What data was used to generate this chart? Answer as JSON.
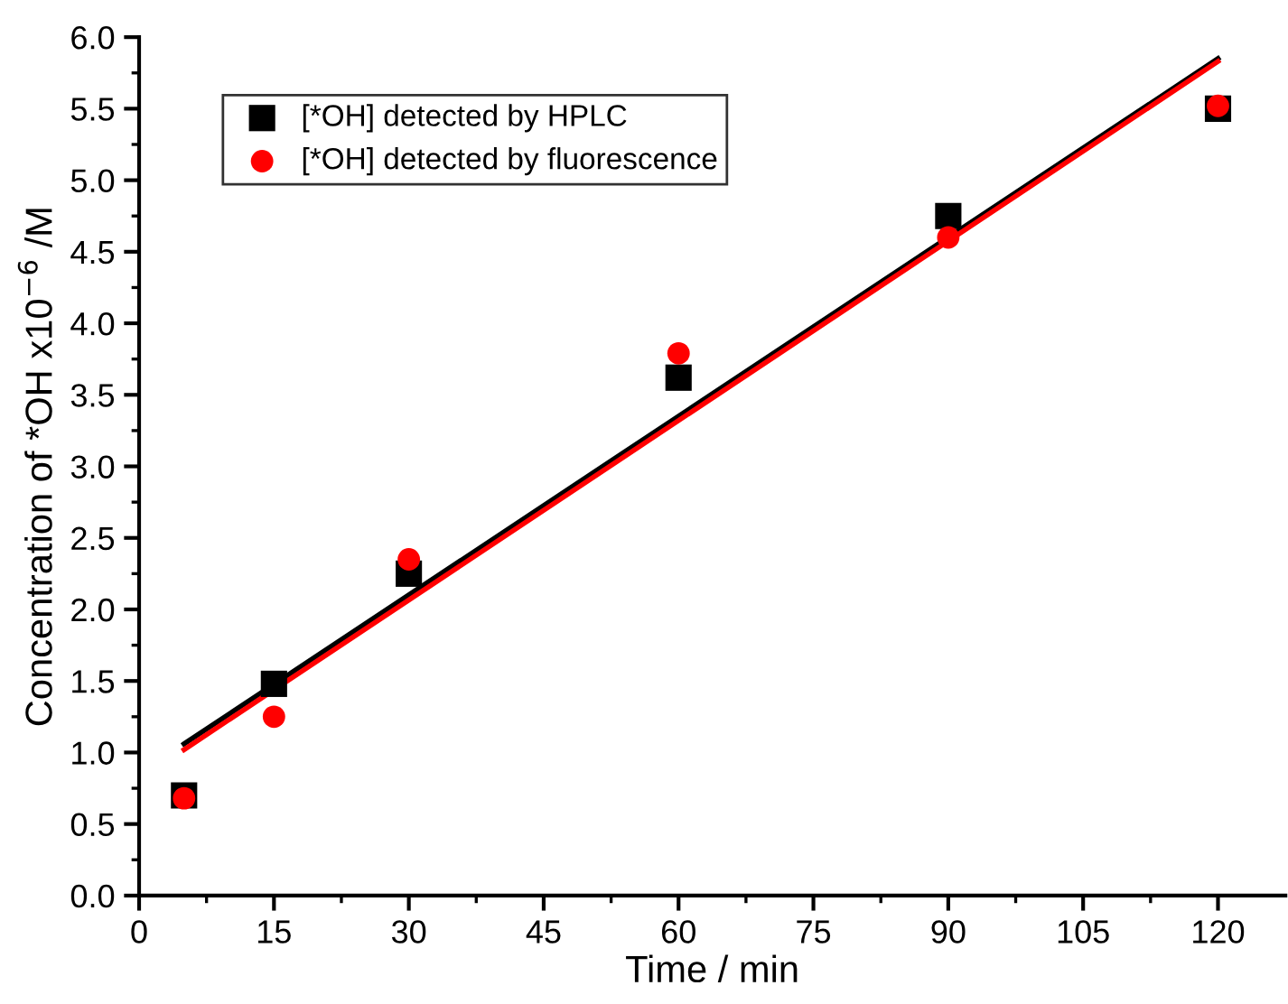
{
  "chart_data": {
    "type": "scatter",
    "xlabel": "Time / min",
    "ylabel": "Concentration of *OH x10$^{−6}$ /M",
    "xlim": [
      0,
      127.5
    ],
    "xticks": [
      0,
      15,
      30,
      45,
      60,
      75,
      90,
      105,
      120
    ],
    "ylim": [
      0,
      6.0
    ],
    "yticks": [
      {
        "value": 0,
        "label": "0.0"
      },
      0.5,
      {
        "value": 1,
        "label": "1.0"
      },
      1.5,
      {
        "value": 2,
        "label": "2.0"
      },
      2.5,
      {
        "value": 3,
        "label": "3.0"
      },
      3.5,
      {
        "value": 4,
        "label": "4.0"
      },
      4.5,
      {
        "value": 5,
        "label": "5.0"
      },
      5.5,
      {
        "value": 6,
        "label": "6.0"
      }
    ],
    "grid": false,
    "legend": "top left",
    "series": [
      {
        "name": "[*OH] detected by HPLC",
        "color": "#000000",
        "marker": "square",
        "x": [
          5,
          15,
          30,
          60,
          90,
          120
        ],
        "values": [
          0.7,
          1.48,
          2.25,
          3.62,
          4.75,
          5.5
        ]
      },
      {
        "name": "[*OH] detected by fluorescence",
        "color": "#ff0000",
        "marker": "circle",
        "x": [
          5,
          15,
          30,
          60,
          90,
          120
        ],
        "values": [
          0.68,
          1.25,
          2.35,
          3.79,
          4.6,
          5.52
        ]
      },
      {
        "type": "line",
        "color": "#000000",
        "marker": "none",
        "x": [
          5,
          120
        ],
        "values": [
          1.06,
          5.85
        ]
      },
      {
        "type": "line",
        "color": "#ff0000",
        "marker": "none",
        "x": [
          5,
          120
        ],
        "values": [
          1.02,
          5.83
        ]
      }
    ]
  }
}
